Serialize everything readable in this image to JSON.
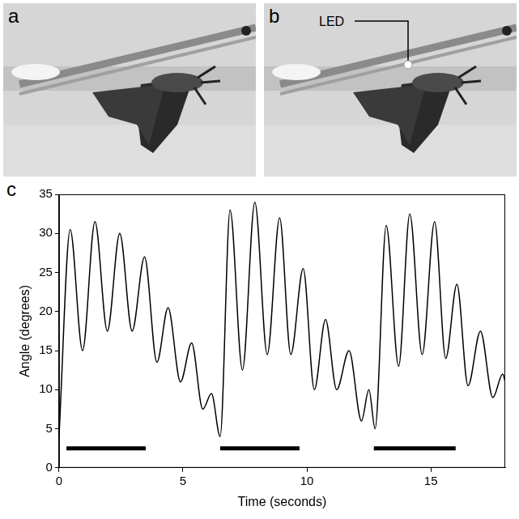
{
  "panels": [
    {
      "label": "a"
    },
    {
      "label": "b",
      "annotation": "LED"
    }
  ],
  "chart_data": {
    "panel_label": "c",
    "type": "line",
    "x_label": "Time (seconds)",
    "y_label": "Angle (degrees)",
    "x": [
      0,
      0.45,
      0.95,
      1.45,
      1.95,
      2.45,
      2.95,
      3.45,
      3.95,
      4.4,
      4.9,
      5.35,
      5.8,
      6.15,
      6.5,
      6.9,
      7.4,
      7.9,
      8.4,
      8.9,
      9.35,
      9.85,
      10.3,
      10.75,
      11.2,
      11.7,
      12.2,
      12.5,
      12.75,
      13.2,
      13.7,
      14.15,
      14.65,
      15.15,
      15.6,
      16.05,
      16.5,
      17.0,
      17.5,
      17.9,
      18
    ],
    "values": [
      4,
      30.5,
      15,
      31.5,
      17.5,
      30,
      17.5,
      27,
      13.5,
      20.5,
      11,
      16,
      7.5,
      9.5,
      4,
      33,
      12.5,
      34,
      14.5,
      32,
      14.5,
      25.5,
      10,
      19,
      10,
      15,
      6,
      10,
      5,
      31,
      13,
      32.5,
      14.5,
      31.5,
      14,
      23.5,
      10.5,
      17.5,
      9,
      12,
      11
    ],
    "color": "#000000",
    "xlim": [
      0,
      18
    ],
    "xticks": [
      0,
      5,
      10,
      15
    ],
    "ylim": [
      0,
      35
    ],
    "yticks": [
      0,
      5,
      10,
      15,
      20,
      25,
      30,
      35
    ],
    "grid": false,
    "stimulus_bars": [
      {
        "start": 0.3,
        "end": 3.5,
        "y": 2.5
      },
      {
        "start": 6.5,
        "end": 9.7,
        "end_note": null,
        "y": 2.5
      },
      {
        "start": 12.7,
        "end": 16.0,
        "y": 2.5
      }
    ]
  }
}
